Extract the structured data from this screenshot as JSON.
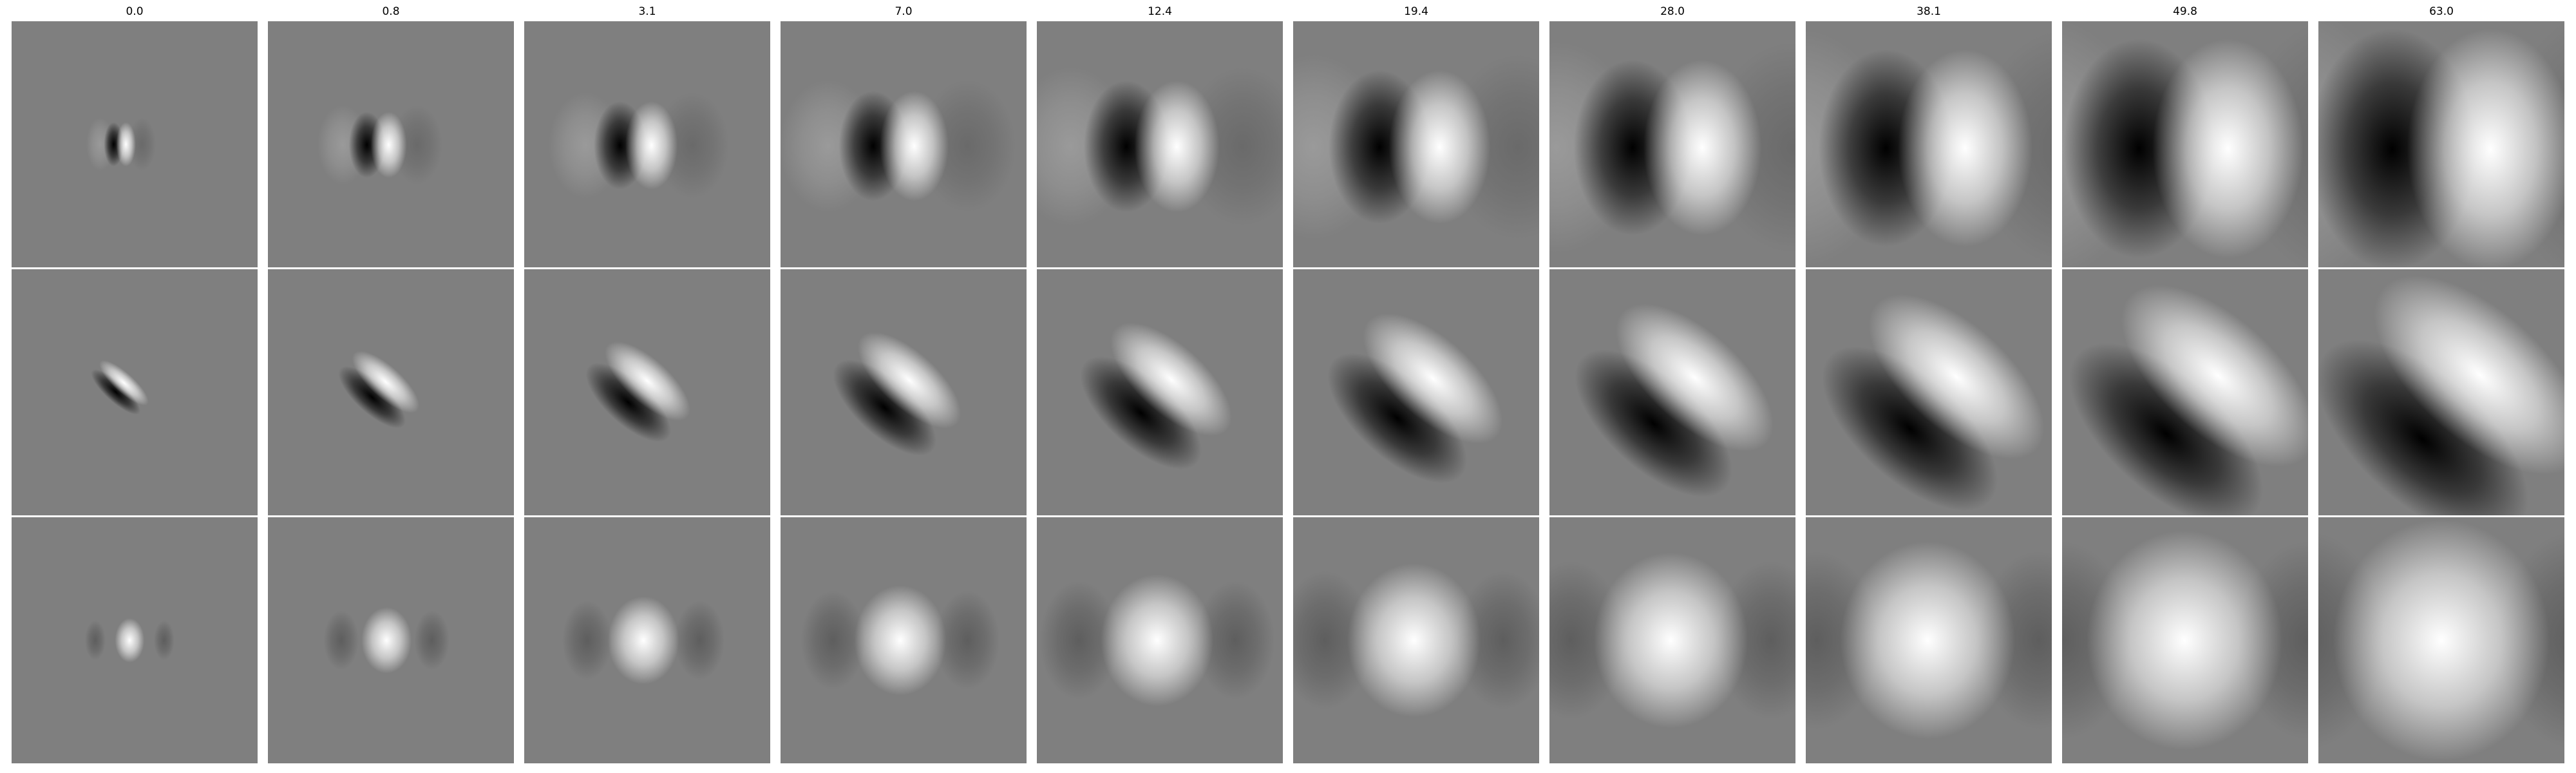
{
  "figure": {
    "column_titles": [
      "0.0",
      "0.8",
      "3.1",
      "7.0",
      "12.4",
      "19.4",
      "28.0",
      "38.1",
      "49.8",
      "63.0"
    ],
    "rows": [
      {
        "name": "row-1",
        "pattern": "horizontal-dipole"
      },
      {
        "name": "row-2",
        "pattern": "diagonal-dipole"
      },
      {
        "name": "row-3",
        "pattern": "center-blob"
      }
    ],
    "background_gray": "#7f7f7f",
    "colormap": "grayscale"
  }
}
